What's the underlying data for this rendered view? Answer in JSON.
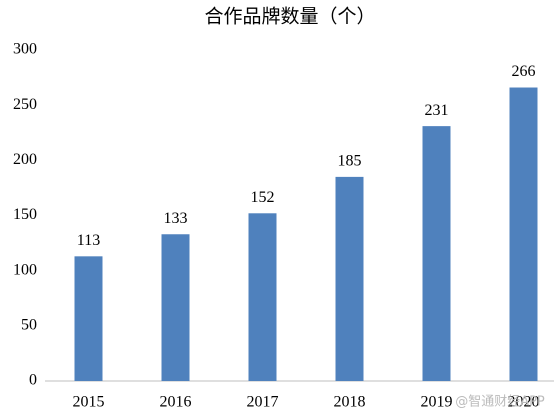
{
  "chart_data": {
    "type": "bar",
    "title": "合作品牌数量（个）",
    "categories": [
      "2015",
      "2016",
      "2017",
      "2018",
      "2019",
      "2020"
    ],
    "values": [
      113,
      133,
      152,
      185,
      231,
      266
    ],
    "color": "#4f81bd",
    "ylim": [
      0,
      300
    ],
    "yticks": [
      0,
      50,
      100,
      150,
      200,
      250,
      300
    ],
    "grid": false,
    "watermark": "@智通财经APP"
  }
}
